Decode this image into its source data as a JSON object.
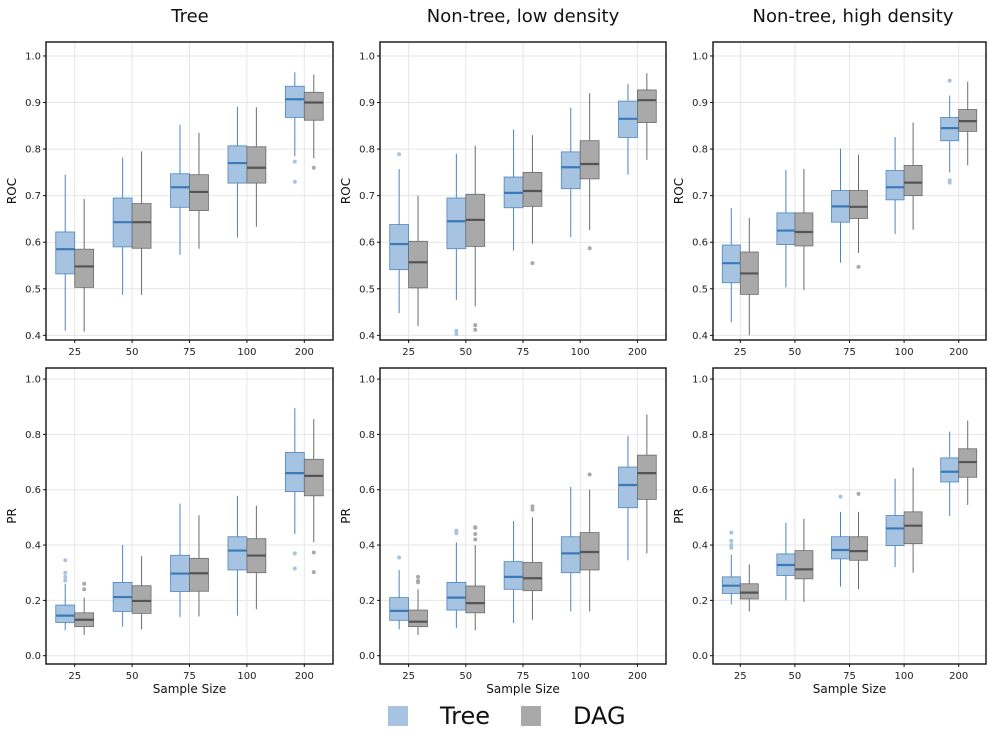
{
  "colors": {
    "tree_fill": "#a7c3e2",
    "tree_line": "#4a86c0",
    "tree_median": "#3b7ab8",
    "dag_fill": "#a9a9a9",
    "dag_line": "#6b6b6b",
    "dag_median": "#555555",
    "grid": "#e6e6e6",
    "frame": "#111111"
  },
  "legend": {
    "items": [
      {
        "name": "Tree",
        "series": "tree"
      },
      {
        "name": "DAG",
        "series": "dag"
      }
    ]
  },
  "chart_data": {
    "type": "boxplot",
    "columns": [
      "Tree",
      "Non-tree, low density",
      "Non-tree, high density"
    ],
    "categories": [
      "25",
      "50",
      "75",
      "100",
      "200"
    ],
    "xlabel": "Sample Size",
    "legend_position": "bottom",
    "grid": true,
    "rows": [
      {
        "metric": "ROC",
        "ylim": [
          0.39,
          1.03
        ],
        "yticks": [
          0.4,
          0.5,
          0.6,
          0.7,
          0.8,
          0.9,
          1.0
        ],
        "ytick_labels": [
          "0.4",
          "0.5",
          "0.6",
          "0.7",
          "0.8",
          "0.9",
          "1.0"
        ],
        "panels": [
          {
            "tree": [
              {
                "lo": 0.41,
                "q1": 0.532,
                "med": 0.585,
                "q3": 0.622,
                "hi": 0.745,
                "out": []
              },
              {
                "lo": 0.487,
                "q1": 0.59,
                "med": 0.643,
                "q3": 0.695,
                "hi": 0.782,
                "out": []
              },
              {
                "lo": 0.573,
                "q1": 0.675,
                "med": 0.718,
                "q3": 0.747,
                "hi": 0.852,
                "out": []
              },
              {
                "lo": 0.61,
                "q1": 0.727,
                "med": 0.77,
                "q3": 0.807,
                "hi": 0.891,
                "out": []
              },
              {
                "lo": 0.785,
                "q1": 0.868,
                "med": 0.907,
                "q3": 0.935,
                "hi": 0.965,
                "out": [
                  0.773,
                  0.73
                ]
              }
            ],
            "dag": [
              {
                "lo": 0.408,
                "q1": 0.503,
                "med": 0.548,
                "q3": 0.585,
                "hi": 0.693,
                "out": []
              },
              {
                "lo": 0.487,
                "q1": 0.587,
                "med": 0.643,
                "q3": 0.683,
                "hi": 0.795,
                "out": []
              },
              {
                "lo": 0.586,
                "q1": 0.668,
                "med": 0.708,
                "q3": 0.745,
                "hi": 0.835,
                "out": []
              },
              {
                "lo": 0.633,
                "q1": 0.727,
                "med": 0.76,
                "q3": 0.805,
                "hi": 0.89,
                "out": []
              },
              {
                "lo": 0.78,
                "q1": 0.862,
                "med": 0.9,
                "q3": 0.922,
                "hi": 0.96,
                "out": [
                  0.76
                ]
              }
            ]
          },
          {
            "tree": [
              {
                "lo": 0.448,
                "q1": 0.541,
                "med": 0.596,
                "q3": 0.638,
                "hi": 0.757,
                "out": [
                  0.789
                ]
              },
              {
                "lo": 0.476,
                "q1": 0.586,
                "med": 0.645,
                "q3": 0.695,
                "hi": 0.79,
                "out": [
                  0.41,
                  0.403
                ]
              },
              {
                "lo": 0.582,
                "q1": 0.674,
                "med": 0.706,
                "q3": 0.74,
                "hi": 0.842,
                "out": []
              },
              {
                "lo": 0.611,
                "q1": 0.715,
                "med": 0.761,
                "q3": 0.794,
                "hi": 0.889,
                "out": []
              },
              {
                "lo": 0.745,
                "q1": 0.825,
                "med": 0.865,
                "q3": 0.903,
                "hi": 0.94,
                "out": []
              }
            ],
            "dag": [
              {
                "lo": 0.42,
                "q1": 0.502,
                "med": 0.557,
                "q3": 0.602,
                "hi": 0.7,
                "out": []
              },
              {
                "lo": 0.462,
                "q1": 0.591,
                "med": 0.648,
                "q3": 0.703,
                "hi": 0.807,
                "out": [
                  0.422,
                  0.412
                ]
              },
              {
                "lo": 0.597,
                "q1": 0.677,
                "med": 0.71,
                "q3": 0.75,
                "hi": 0.83,
                "out": [
                  0.555
                ]
              },
              {
                "lo": 0.626,
                "q1": 0.736,
                "med": 0.768,
                "q3": 0.818,
                "hi": 0.92,
                "out": [
                  0.587
                ]
              },
              {
                "lo": 0.777,
                "q1": 0.857,
                "med": 0.905,
                "q3": 0.927,
                "hi": 0.963,
                "out": []
              }
            ]
          },
          {
            "tree": [
              {
                "lo": 0.428,
                "q1": 0.513,
                "med": 0.555,
                "q3": 0.594,
                "hi": 0.673,
                "out": []
              },
              {
                "lo": 0.503,
                "q1": 0.595,
                "med": 0.625,
                "q3": 0.663,
                "hi": 0.755,
                "out": []
              },
              {
                "lo": 0.556,
                "q1": 0.643,
                "med": 0.677,
                "q3": 0.711,
                "hi": 0.801,
                "out": []
              },
              {
                "lo": 0.618,
                "q1": 0.691,
                "med": 0.718,
                "q3": 0.754,
                "hi": 0.826,
                "out": []
              },
              {
                "lo": 0.75,
                "q1": 0.818,
                "med": 0.845,
                "q3": 0.868,
                "hi": 0.915,
                "out": [
                  0.947,
                  0.733,
                  0.728
                ]
              }
            ],
            "dag": [
              {
                "lo": 0.4,
                "q1": 0.488,
                "med": 0.533,
                "q3": 0.579,
                "hi": 0.652,
                "out": []
              },
              {
                "lo": 0.497,
                "q1": 0.592,
                "med": 0.622,
                "q3": 0.663,
                "hi": 0.757,
                "out": []
              },
              {
                "lo": 0.577,
                "q1": 0.651,
                "med": 0.676,
                "q3": 0.711,
                "hi": 0.788,
                "out": [
                  0.547
                ]
              },
              {
                "lo": 0.627,
                "q1": 0.7,
                "med": 0.728,
                "q3": 0.765,
                "hi": 0.857,
                "out": []
              },
              {
                "lo": 0.765,
                "q1": 0.838,
                "med": 0.86,
                "q3": 0.885,
                "hi": 0.945,
                "out": []
              }
            ]
          }
        ]
      },
      {
        "metric": "PR",
        "ylim": [
          -0.03,
          1.04
        ],
        "yticks": [
          0.0,
          0.2,
          0.4,
          0.6,
          0.8,
          1.0
        ],
        "ytick_labels": [
          "0.0",
          "0.2",
          "0.4",
          "0.6",
          "0.8",
          "1.0"
        ],
        "panels": [
          {
            "tree": [
              {
                "lo": 0.092,
                "q1": 0.12,
                "med": 0.145,
                "q3": 0.183,
                "hi": 0.26,
                "out": [
                  0.345,
                  0.3,
                  0.285,
                  0.272
                ]
              },
              {
                "lo": 0.105,
                "q1": 0.16,
                "med": 0.212,
                "q3": 0.265,
                "hi": 0.4,
                "out": []
              },
              {
                "lo": 0.14,
                "q1": 0.232,
                "med": 0.297,
                "q3": 0.363,
                "hi": 0.55,
                "out": []
              },
              {
                "lo": 0.145,
                "q1": 0.31,
                "med": 0.38,
                "q3": 0.43,
                "hi": 0.578,
                "out": []
              },
              {
                "lo": 0.44,
                "q1": 0.593,
                "med": 0.66,
                "q3": 0.735,
                "hi": 0.895,
                "out": [
                  0.37,
                  0.315
                ]
              }
            ],
            "dag": [
              {
                "lo": 0.075,
                "q1": 0.105,
                "med": 0.13,
                "q3": 0.155,
                "hi": 0.21,
                "out": [
                  0.26,
                  0.24
                ]
              },
              {
                "lo": 0.095,
                "q1": 0.153,
                "med": 0.198,
                "q3": 0.253,
                "hi": 0.36,
                "out": []
              },
              {
                "lo": 0.142,
                "q1": 0.233,
                "med": 0.298,
                "q3": 0.352,
                "hi": 0.508,
                "out": []
              },
              {
                "lo": 0.168,
                "q1": 0.3,
                "med": 0.362,
                "q3": 0.423,
                "hi": 0.542,
                "out": []
              },
              {
                "lo": 0.41,
                "q1": 0.578,
                "med": 0.65,
                "q3": 0.71,
                "hi": 0.855,
                "out": [
                  0.373,
                  0.302
                ]
              }
            ]
          },
          {
            "tree": [
              {
                "lo": 0.095,
                "q1": 0.128,
                "med": 0.162,
                "q3": 0.21,
                "hi": 0.31,
                "out": [
                  0.355
                ]
              },
              {
                "lo": 0.1,
                "q1": 0.165,
                "med": 0.21,
                "q3": 0.265,
                "hi": 0.41,
                "out": [
                  0.452,
                  0.443
                ]
              },
              {
                "lo": 0.118,
                "q1": 0.24,
                "med": 0.285,
                "q3": 0.34,
                "hi": 0.487,
                "out": []
              },
              {
                "lo": 0.16,
                "q1": 0.3,
                "med": 0.37,
                "q3": 0.43,
                "hi": 0.61,
                "out": []
              },
              {
                "lo": 0.345,
                "q1": 0.535,
                "med": 0.617,
                "q3": 0.682,
                "hi": 0.795,
                "out": []
              }
            ],
            "dag": [
              {
                "lo": 0.075,
                "q1": 0.105,
                "med": 0.123,
                "q3": 0.165,
                "hi": 0.24,
                "out": [
                  0.285,
                  0.27,
                  0.265
                ]
              },
              {
                "lo": 0.092,
                "q1": 0.155,
                "med": 0.19,
                "q3": 0.252,
                "hi": 0.4,
                "out": [
                  0.465,
                  0.462,
                  0.44,
                  0.42
                ]
              },
              {
                "lo": 0.13,
                "q1": 0.235,
                "med": 0.28,
                "q3": 0.337,
                "hi": 0.5,
                "out": [
                  0.54,
                  0.528
                ]
              },
              {
                "lo": 0.16,
                "q1": 0.31,
                "med": 0.375,
                "q3": 0.445,
                "hi": 0.6,
                "out": [
                  0.655
                ]
              },
              {
                "lo": 0.37,
                "q1": 0.565,
                "med": 0.66,
                "q3": 0.725,
                "hi": 0.872,
                "out": []
              }
            ]
          },
          {
            "tree": [
              {
                "lo": 0.185,
                "q1": 0.225,
                "med": 0.253,
                "q3": 0.285,
                "hi": 0.365,
                "out": [
                  0.445,
                  0.415,
                  0.4,
                  0.39
                ]
              },
              {
                "lo": 0.2,
                "q1": 0.29,
                "med": 0.328,
                "q3": 0.368,
                "hi": 0.48,
                "out": []
              },
              {
                "lo": 0.25,
                "q1": 0.35,
                "med": 0.382,
                "q3": 0.43,
                "hi": 0.52,
                "out": [
                  0.575
                ]
              },
              {
                "lo": 0.32,
                "q1": 0.398,
                "med": 0.46,
                "q3": 0.507,
                "hi": 0.64,
                "out": []
              },
              {
                "lo": 0.505,
                "q1": 0.628,
                "med": 0.665,
                "q3": 0.715,
                "hi": 0.81,
                "out": []
              }
            ],
            "dag": [
              {
                "lo": 0.16,
                "q1": 0.205,
                "med": 0.228,
                "q3": 0.26,
                "hi": 0.33,
                "out": []
              },
              {
                "lo": 0.195,
                "q1": 0.278,
                "med": 0.312,
                "q3": 0.38,
                "hi": 0.495,
                "out": []
              },
              {
                "lo": 0.24,
                "q1": 0.345,
                "med": 0.378,
                "q3": 0.43,
                "hi": 0.52,
                "out": [
                  0.585
                ]
              },
              {
                "lo": 0.3,
                "q1": 0.405,
                "med": 0.47,
                "q3": 0.52,
                "hi": 0.68,
                "out": []
              },
              {
                "lo": 0.545,
                "q1": 0.645,
                "med": 0.7,
                "q3": 0.748,
                "hi": 0.85,
                "out": []
              }
            ]
          }
        ]
      }
    ]
  }
}
